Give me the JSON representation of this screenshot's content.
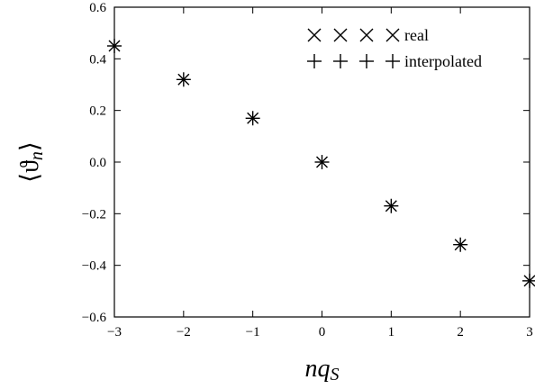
{
  "chart_data": {
    "type": "scatter",
    "xlabel": "nq_S",
    "ylabel": "⟨ϑ_n⟩",
    "xlim": [
      -3,
      3
    ],
    "ylim": [
      -0.6,
      0.6
    ],
    "x_ticks": [
      -3,
      -2,
      -1,
      0,
      1,
      2,
      3
    ],
    "y_ticks": [
      -0.6,
      -0.4,
      -0.2,
      0.0,
      0.2,
      0.4,
      0.6
    ],
    "x_tick_labels": [
      "−3",
      "−2",
      "−1",
      "0",
      "1",
      "2",
      "3"
    ],
    "y_tick_labels": [
      "−0.6",
      "−0.4",
      "−0.2",
      "0.0",
      "0.2",
      "0.4",
      "0.6"
    ],
    "legend_position": "top-right",
    "grid": false,
    "series": [
      {
        "name": "real",
        "marker": "x",
        "color": "#000000",
        "x": [
          -3,
          -2,
          -1,
          0,
          1,
          2,
          3
        ],
        "y": [
          0.45,
          0.32,
          0.17,
          0.0,
          -0.17,
          -0.32,
          -0.46
        ]
      },
      {
        "name": "interpolated",
        "marker": "+",
        "color": "#000000",
        "x": [
          -3,
          -2,
          -1,
          0,
          1,
          2,
          3
        ],
        "y": [
          0.45,
          0.32,
          0.17,
          0.0,
          -0.17,
          -0.32,
          -0.46
        ]
      }
    ],
    "legend": {
      "entries": [
        {
          "label": "real",
          "glyph": "××××"
        },
        {
          "label": "interpolated",
          "glyph": "++++"
        }
      ]
    }
  }
}
